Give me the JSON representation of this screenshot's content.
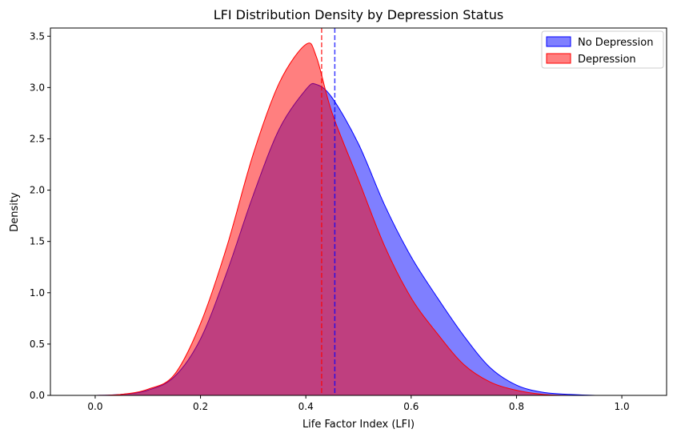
{
  "chart_data": {
    "type": "area",
    "title": "LFI Distribution Density by Depression Status",
    "xlabel": "Life Factor Index (LFI)",
    "ylabel": "Density",
    "xlim": [
      -0.085,
      1.085
    ],
    "ylim": [
      0,
      3.58
    ],
    "xticks": [
      0.0,
      0.2,
      0.4,
      0.6,
      0.8,
      1.0
    ],
    "xtick_labels": [
      "0.0",
      "0.2",
      "0.4",
      "0.6",
      "0.8",
      "1.0"
    ],
    "yticks": [
      0.0,
      0.5,
      1.0,
      1.5,
      2.0,
      2.5,
      3.0,
      3.5
    ],
    "ytick_labels": [
      "0.0",
      "0.5",
      "1.0",
      "1.5",
      "2.0",
      "2.5",
      "3.0",
      "3.5"
    ],
    "grid": false,
    "legend_position": "top-right",
    "series": [
      {
        "name": "No Depression",
        "color": "#0000ff",
        "fill_alpha": 0.5,
        "mean": 0.455,
        "x": [
          -0.035,
          0.0,
          0.05,
          0.1,
          0.15,
          0.2,
          0.25,
          0.3,
          0.35,
          0.4,
          0.42,
          0.45,
          0.5,
          0.55,
          0.6,
          0.65,
          0.7,
          0.75,
          0.8,
          0.85,
          0.9,
          0.95,
          1.0,
          1.035
        ],
        "y": [
          0.0,
          0.0,
          0.01,
          0.05,
          0.18,
          0.55,
          1.2,
          1.95,
          2.6,
          2.98,
          3.03,
          2.9,
          2.45,
          1.85,
          1.35,
          0.95,
          0.58,
          0.27,
          0.1,
          0.03,
          0.01,
          0.0,
          0.0,
          0.0
        ]
      },
      {
        "name": "Depression",
        "color": "#ff0000",
        "fill_alpha": 0.5,
        "mean": 0.43,
        "x": [
          -0.035,
          0.0,
          0.05,
          0.1,
          0.15,
          0.2,
          0.25,
          0.3,
          0.35,
          0.4,
          0.42,
          0.45,
          0.5,
          0.55,
          0.6,
          0.65,
          0.7,
          0.75,
          0.8,
          0.85,
          0.9,
          0.95,
          1.0,
          1.035
        ],
        "y": [
          0.0,
          0.0,
          0.01,
          0.06,
          0.2,
          0.7,
          1.45,
          2.35,
          3.05,
          3.42,
          3.3,
          2.75,
          2.1,
          1.45,
          0.95,
          0.6,
          0.3,
          0.13,
          0.05,
          0.01,
          0.0,
          0.0,
          0.0,
          0.0
        ]
      }
    ]
  }
}
